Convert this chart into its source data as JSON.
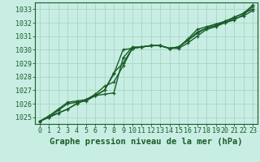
{
  "title": "Graphe pression niveau de la mer (hPa)",
  "bg_color": "#c8eee4",
  "plot_bg_color": "#c8eee4",
  "grid_color": "#aad4c8",
  "line_color": "#1a5c28",
  "border_color": "#1a5c28",
  "xlim": [
    -0.5,
    23.5
  ],
  "ylim": [
    1024.5,
    1033.5
  ],
  "yticks": [
    1025,
    1026,
    1027,
    1028,
    1029,
    1030,
    1031,
    1032,
    1033
  ],
  "xticks": [
    0,
    1,
    2,
    3,
    4,
    5,
    6,
    7,
    8,
    9,
    10,
    11,
    12,
    13,
    14,
    15,
    16,
    17,
    18,
    19,
    20,
    21,
    22,
    23
  ],
  "series": [
    [
      1024.7,
      1025.0,
      1025.3,
      1025.6,
      1026.0,
      1026.3,
      1026.6,
      1027.0,
      1028.3,
      1029.0,
      1030.1,
      1030.2,
      1030.3,
      1030.3,
      1030.1,
      1030.1,
      1030.5,
      1031.0,
      1031.5,
      1031.7,
      1032.0,
      1032.2,
      1032.6,
      1033.2
    ],
    [
      1024.7,
      1025.0,
      1025.3,
      1025.6,
      1026.0,
      1026.3,
      1026.6,
      1026.7,
      1026.8,
      1029.4,
      1030.2,
      1030.2,
      1030.3,
      1030.3,
      1030.1,
      1030.2,
      1030.7,
      1031.2,
      1031.6,
      1031.8,
      1032.1,
      1032.4,
      1032.7,
      1033.3
    ],
    [
      1024.7,
      1025.1,
      1025.6,
      1026.1,
      1026.2,
      1026.3,
      1026.7,
      1027.3,
      1027.6,
      1028.8,
      1030.1,
      1030.2,
      1030.3,
      1030.3,
      1030.1,
      1030.2,
      1030.8,
      1031.5,
      1031.7,
      1031.9,
      1032.1,
      1032.4,
      1032.7,
      1033.0
    ],
    [
      1024.7,
      1025.0,
      1025.5,
      1026.0,
      1026.1,
      1026.2,
      1026.6,
      1027.0,
      1028.2,
      1030.0,
      1030.1,
      1030.2,
      1030.3,
      1030.3,
      1030.1,
      1030.2,
      1030.7,
      1031.3,
      1031.6,
      1031.8,
      1032.0,
      1032.3,
      1032.5,
      1032.9
    ]
  ],
  "linewidths": [
    1.0,
    1.0,
    1.0,
    1.0
  ],
  "title_fontsize": 7.5,
  "tick_fontsize": 6.0,
  "title_color": "#1a5c28",
  "tick_color": "#1a5c28",
  "axis_color": "#1a5c28"
}
